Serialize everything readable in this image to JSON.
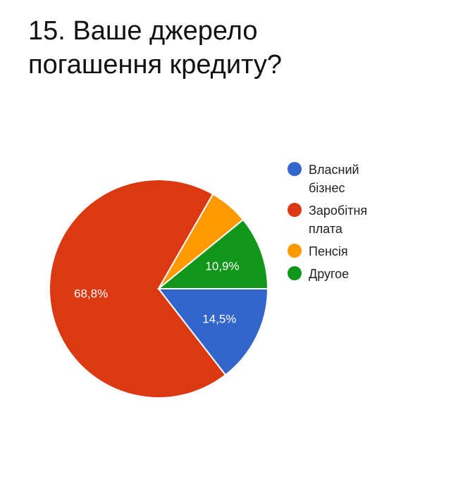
{
  "title": {
    "line1": "15. Ваше джерело",
    "line2": "погашення кредиту?"
  },
  "chart_data": {
    "type": "pie",
    "title": "15. Ваше джерело погашення кредиту?",
    "start_angle_deg": 0,
    "direction": "clockwise",
    "categories": [
      "Власний бізнес",
      "Заробітня плата",
      "Пенсія",
      "Другое"
    ],
    "values": [
      14.5,
      68.8,
      5.8,
      10.9
    ],
    "data_labels": [
      "14,5%",
      "68,8%",
      "",
      "10,9%"
    ],
    "colors": [
      "#3366cc",
      "#dc3912",
      "#ff9900",
      "#109618"
    ],
    "legend": {
      "position": "right",
      "entries": [
        {
          "lines": [
            "Власний",
            "бізнес"
          ],
          "color": "#3366cc"
        },
        {
          "lines": [
            "Заробітня",
            "плата"
          ],
          "color": "#dc3912"
        },
        {
          "lines": [
            "Пенсія"
          ],
          "color": "#ff9900"
        },
        {
          "lines": [
            "Другое"
          ],
          "color": "#109618"
        }
      ]
    }
  }
}
